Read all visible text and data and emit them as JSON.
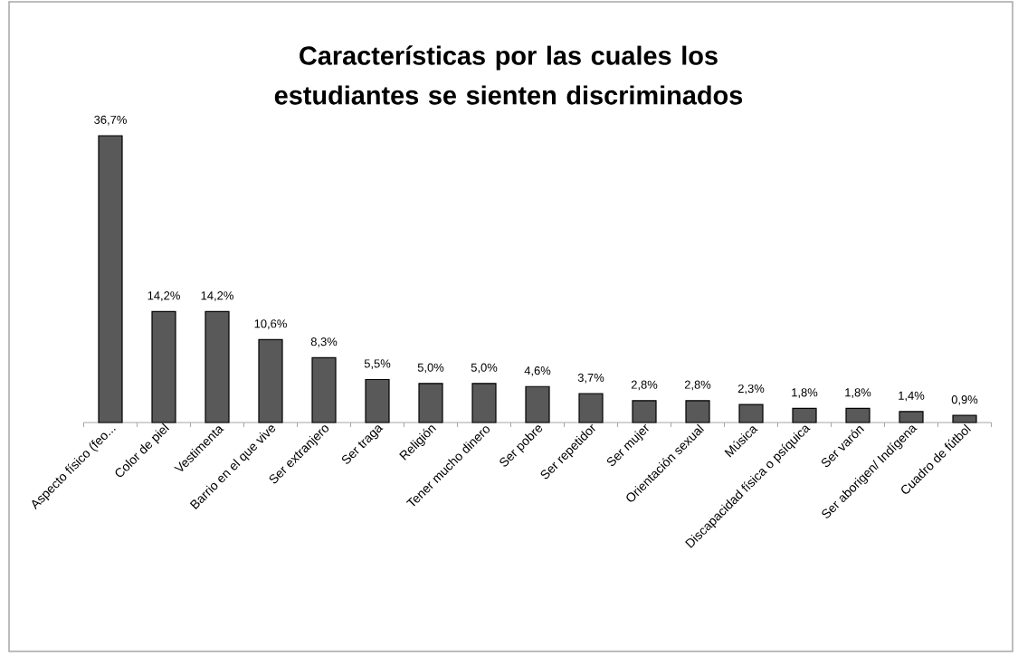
{
  "chart_data": {
    "type": "bar",
    "title": "Características por las cuales los estudiantes se sienten discriminados",
    "categories": [
      "Aspecto físico (feo...",
      "Color de piel",
      "Vestimenta",
      "Barrio en el que vive",
      "Ser extranjero",
      "Ser traga",
      "Religión",
      "Tener mucho dinero",
      "Ser pobre",
      "Ser repetidor",
      "Ser mujer",
      "Orientación sexual",
      "Música",
      "Discapacidad física o psíquica",
      "Ser varón",
      "Ser aborigen/ Indígena",
      "Cuadro de fútbol"
    ],
    "values": [
      36.7,
      14.2,
      14.2,
      10.6,
      8.3,
      5.5,
      5.0,
      5.0,
      4.6,
      3.7,
      2.8,
      2.8,
      2.3,
      1.8,
      1.8,
      1.4,
      0.9
    ],
    "value_labels": [
      "36,7%",
      "14,2%",
      "14,2%",
      "10,6%",
      "8,3%",
      "5,5%",
      "5,0%",
      "5,0%",
      "4,6%",
      "3,7%",
      "2,8%",
      "2,8%",
      "2,3%",
      "1,8%",
      "1,8%",
      "1,4%",
      "0,9%"
    ],
    "color": "#595959"
  }
}
